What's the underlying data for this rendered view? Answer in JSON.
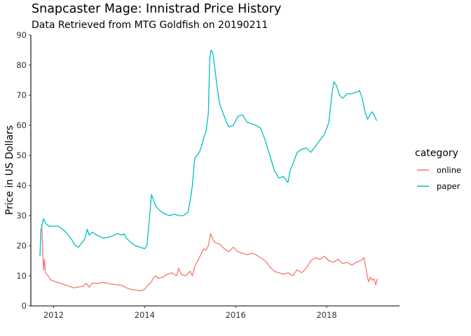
{
  "chart_data": {
    "type": "line",
    "title": "Snapcaster Mage: Innistrad Price History",
    "subtitle": "Data Retrieved from MTG Goldfish on 20190211",
    "xlabel": "",
    "ylabel": "Price in US Dollars",
    "xlim": [
      2011.5,
      2019.6
    ],
    "ylim": [
      0,
      90
    ],
    "x_ticks": [
      2012,
      2014,
      2016,
      2018
    ],
    "x_tick_labels": [
      "2012",
      "2014",
      "2016",
      "2018"
    ],
    "y_ticks": [
      0,
      10,
      20,
      30,
      40,
      50,
      60,
      70,
      80,
      90
    ],
    "y_tick_labels": [
      "0",
      "10",
      "20",
      "30",
      "40",
      "50",
      "60",
      "70",
      "80",
      "90"
    ],
    "grid": false,
    "legend": {
      "title": "category",
      "position": "right"
    },
    "series": [
      {
        "name": "online",
        "color": "#F8766D",
        "points": [
          [
            2011.74,
            27
          ],
          [
            2011.76,
            18
          ],
          [
            2011.78,
            12
          ],
          [
            2011.8,
            15.5
          ],
          [
            2011.82,
            11
          ],
          [
            2011.88,
            10
          ],
          [
            2011.95,
            8.5
          ],
          [
            2012.05,
            8
          ],
          [
            2012.15,
            7.5
          ],
          [
            2012.25,
            7
          ],
          [
            2012.35,
            6.5
          ],
          [
            2012.45,
            6
          ],
          [
            2012.55,
            6.3
          ],
          [
            2012.65,
            6.5
          ],
          [
            2012.72,
            7.5
          ],
          [
            2012.78,
            6.2
          ],
          [
            2012.85,
            7.6
          ],
          [
            2012.95,
            7.5
          ],
          [
            2013.1,
            7.8
          ],
          [
            2013.25,
            7.3
          ],
          [
            2013.4,
            7
          ],
          [
            2013.5,
            6.8
          ],
          [
            2013.6,
            6
          ],
          [
            2013.7,
            5.5
          ],
          [
            2013.8,
            5.3
          ],
          [
            2013.9,
            5
          ],
          [
            2014.0,
            5.5
          ],
          [
            2014.05,
            6.5
          ],
          [
            2014.1,
            7.2
          ],
          [
            2014.15,
            8
          ],
          [
            2014.2,
            9.5
          ],
          [
            2014.25,
            10
          ],
          [
            2014.3,
            9.2
          ],
          [
            2014.4,
            9.5
          ],
          [
            2014.5,
            10.5
          ],
          [
            2014.6,
            11
          ],
          [
            2014.7,
            10
          ],
          [
            2014.75,
            12.5
          ],
          [
            2014.8,
            10.5
          ],
          [
            2014.9,
            10
          ],
          [
            2015.0,
            11.5
          ],
          [
            2015.05,
            10
          ],
          [
            2015.1,
            13
          ],
          [
            2015.15,
            14.5
          ],
          [
            2015.2,
            16
          ],
          [
            2015.25,
            17.5
          ],
          [
            2015.3,
            19
          ],
          [
            2015.35,
            18.5
          ],
          [
            2015.4,
            20
          ],
          [
            2015.45,
            24
          ],
          [
            2015.5,
            22
          ],
          [
            2015.55,
            21
          ],
          [
            2015.65,
            20.5
          ],
          [
            2015.75,
            19
          ],
          [
            2015.85,
            18
          ],
          [
            2015.95,
            19.5
          ],
          [
            2016.05,
            18
          ],
          [
            2016.15,
            17.5
          ],
          [
            2016.25,
            17
          ],
          [
            2016.35,
            17.5
          ],
          [
            2016.45,
            17
          ],
          [
            2016.55,
            16
          ],
          [
            2016.65,
            15
          ],
          [
            2016.75,
            13
          ],
          [
            2016.85,
            11.5
          ],
          [
            2016.95,
            11
          ],
          [
            2017.05,
            10.5
          ],
          [
            2017.15,
            11
          ],
          [
            2017.25,
            10
          ],
          [
            2017.35,
            12
          ],
          [
            2017.45,
            11
          ],
          [
            2017.55,
            12.5
          ],
          [
            2017.65,
            15
          ],
          [
            2017.75,
            16
          ],
          [
            2017.85,
            15.5
          ],
          [
            2017.95,
            16.5
          ],
          [
            2018.05,
            15
          ],
          [
            2018.15,
            14.5
          ],
          [
            2018.25,
            15.5
          ],
          [
            2018.35,
            14
          ],
          [
            2018.45,
            14.5
          ],
          [
            2018.55,
            13.5
          ],
          [
            2018.65,
            14.5
          ],
          [
            2018.75,
            15
          ],
          [
            2018.82,
            16
          ],
          [
            2018.88,
            11
          ],
          [
            2018.92,
            8
          ],
          [
            2018.96,
            9.5
          ],
          [
            2019.0,
            8.5
          ],
          [
            2019.04,
            9
          ],
          [
            2019.08,
            7
          ],
          [
            2019.11,
            9
          ]
        ]
      },
      {
        "name": "paper",
        "color": "#00BFC4",
        "points": [
          [
            2011.7,
            16.5
          ],
          [
            2011.72,
            25
          ],
          [
            2011.75,
            27
          ],
          [
            2011.78,
            29
          ],
          [
            2011.82,
            27.5
          ],
          [
            2011.9,
            26.5
          ],
          [
            2012.0,
            26.5
          ],
          [
            2012.1,
            26.5
          ],
          [
            2012.2,
            25.5
          ],
          [
            2012.3,
            24
          ],
          [
            2012.4,
            22
          ],
          [
            2012.48,
            20
          ],
          [
            2012.55,
            19.5
          ],
          [
            2012.62,
            21
          ],
          [
            2012.68,
            22
          ],
          [
            2012.74,
            25.5
          ],
          [
            2012.78,
            23.5
          ],
          [
            2012.85,
            24.5
          ],
          [
            2012.95,
            23.5
          ],
          [
            2013.1,
            22.5
          ],
          [
            2013.25,
            23
          ],
          [
            2013.4,
            24
          ],
          [
            2013.5,
            23.5
          ],
          [
            2013.55,
            24
          ],
          [
            2013.6,
            22.5
          ],
          [
            2013.7,
            21
          ],
          [
            2013.8,
            20
          ],
          [
            2013.9,
            19.5
          ],
          [
            2014.0,
            19
          ],
          [
            2014.05,
            20
          ],
          [
            2014.1,
            28
          ],
          [
            2014.15,
            37
          ],
          [
            2014.2,
            35
          ],
          [
            2014.25,
            33
          ],
          [
            2014.35,
            31.5
          ],
          [
            2014.45,
            30.5
          ],
          [
            2014.55,
            30
          ],
          [
            2014.65,
            30.5
          ],
          [
            2014.75,
            30
          ],
          [
            2014.85,
            30
          ],
          [
            2014.95,
            31
          ],
          [
            2015.0,
            35
          ],
          [
            2015.05,
            40
          ],
          [
            2015.1,
            49
          ],
          [
            2015.15,
            50
          ],
          [
            2015.2,
            51
          ],
          [
            2015.25,
            53
          ],
          [
            2015.3,
            56
          ],
          [
            2015.35,
            58
          ],
          [
            2015.4,
            64
          ],
          [
            2015.43,
            82
          ],
          [
            2015.46,
            85
          ],
          [
            2015.5,
            84
          ],
          [
            2015.55,
            78
          ],
          [
            2015.6,
            72
          ],
          [
            2015.65,
            67
          ],
          [
            2015.7,
            65
          ],
          [
            2015.75,
            63
          ],
          [
            2015.8,
            61
          ],
          [
            2015.85,
            59.5
          ],
          [
            2015.95,
            60
          ],
          [
            2016.05,
            63
          ],
          [
            2016.15,
            63.5
          ],
          [
            2016.25,
            61
          ],
          [
            2016.35,
            60.5
          ],
          [
            2016.45,
            60
          ],
          [
            2016.55,
            59
          ],
          [
            2016.65,
            55
          ],
          [
            2016.75,
            50
          ],
          [
            2016.85,
            45
          ],
          [
            2016.95,
            42.5
          ],
          [
            2017.05,
            43
          ],
          [
            2017.15,
            41
          ],
          [
            2017.2,
            45
          ],
          [
            2017.28,
            48
          ],
          [
            2017.35,
            51
          ],
          [
            2017.45,
            52
          ],
          [
            2017.55,
            52.5
          ],
          [
            2017.65,
            51
          ],
          [
            2017.75,
            53
          ],
          [
            2017.85,
            55
          ],
          [
            2017.95,
            57
          ],
          [
            2018.05,
            61
          ],
          [
            2018.12,
            71
          ],
          [
            2018.16,
            74.5
          ],
          [
            2018.22,
            73
          ],
          [
            2018.28,
            70
          ],
          [
            2018.35,
            69
          ],
          [
            2018.45,
            70.5
          ],
          [
            2018.55,
            70.5
          ],
          [
            2018.65,
            71
          ],
          [
            2018.72,
            71.5
          ],
          [
            2018.78,
            69
          ],
          [
            2018.85,
            64
          ],
          [
            2018.9,
            62
          ],
          [
            2018.95,
            63.5
          ],
          [
            2019.0,
            64.5
          ],
          [
            2019.05,
            63
          ],
          [
            2019.1,
            61.5
          ]
        ]
      }
    ]
  }
}
